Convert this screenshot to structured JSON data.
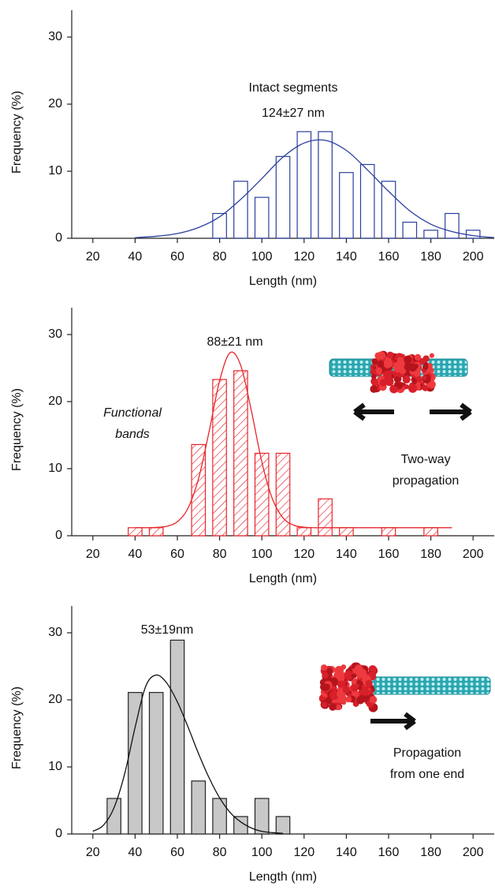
{
  "chart_data": [
    {
      "type": "bar",
      "x": [
        80,
        90,
        100,
        110,
        120,
        130,
        140,
        150,
        160,
        170,
        180,
        190,
        200
      ],
      "values": [
        3.7,
        8.5,
        6.1,
        12.2,
        15.9,
        15.9,
        9.8,
        11.0,
        8.5,
        2.4,
        1.2,
        3.7,
        1.2
      ],
      "color": "#2b3f9e",
      "fill": "none",
      "fit": {
        "color": "#2b3f9e",
        "x": [
          40,
          50,
          60,
          70,
          80,
          90,
          100,
          110,
          120,
          130,
          140,
          150,
          160,
          170,
          180,
          190,
          200,
          210
        ],
        "values": [
          0.1,
          0.3,
          0.7,
          1.6,
          3.2,
          5.8,
          8.9,
          12.1,
          14.2,
          14.6,
          13.1,
          10.2,
          7.0,
          4.1,
          2.1,
          1.0,
          0.4,
          0.1
        ]
      },
      "xlim": [
        10,
        210
      ],
      "ylim": [
        0,
        34
      ],
      "xticks": [
        20,
        40,
        60,
        80,
        100,
        120,
        140,
        160,
        180,
        200
      ],
      "yticks": [
        0,
        10,
        20,
        30
      ],
      "xlabel": "Length (nm)",
      "ylabel": "Frequency (%)",
      "annotations": [
        {
          "lines": [
            "Intact segments"
          ]
        },
        {
          "lines": [
            "124±27 nm"
          ]
        }
      ]
    },
    {
      "type": "bar",
      "x": [
        40,
        50,
        70,
        80,
        90,
        100,
        110,
        120,
        130,
        140,
        160,
        180
      ],
      "values": [
        1.2,
        1.2,
        13.6,
        23.3,
        24.6,
        12.3,
        12.3,
        1.2,
        5.5,
        1.2,
        1.2,
        1.2
      ],
      "color": "#e8262b",
      "fill": "hatch",
      "fit": {
        "color": "#e8262b",
        "x": [
          40,
          45,
          50,
          55,
          60,
          65,
          70,
          75,
          80,
          85,
          90,
          95,
          100,
          105,
          110,
          115,
          120,
          125,
          130,
          140,
          150,
          160,
          170,
          180,
          190
        ],
        "values": [
          1.2,
          1.2,
          1.24,
          1.41,
          2.09,
          4.09,
          8.48,
          15.5,
          23.1,
          27.3,
          25.4,
          18.7,
          11.0,
          5.5,
          2.67,
          1.59,
          1.28,
          1.2,
          1.2,
          1.2,
          1.2,
          1.2,
          1.2,
          1.2,
          1.2
        ]
      },
      "xlim": [
        10,
        210
      ],
      "ylim": [
        0,
        34
      ],
      "xticks": [
        20,
        40,
        60,
        80,
        100,
        120,
        140,
        160,
        180,
        200
      ],
      "yticks": [
        0,
        10,
        20,
        30
      ],
      "xlabel": "Length (nm)",
      "ylabel": "Frequency (%)",
      "annotations": [
        {
          "lines": [
            "88±21 nm"
          ]
        },
        {
          "lines": [
            "Functional",
            "bands"
          ]
        },
        {
          "lines": [
            "Two-way",
            "propagation"
          ]
        }
      ]
    },
    {
      "type": "bar",
      "x": [
        30,
        40,
        50,
        60,
        70,
        80,
        90,
        100,
        110
      ],
      "values": [
        5.3,
        21.1,
        21.1,
        28.9,
        7.9,
        5.3,
        2.6,
        5.3,
        2.6
      ],
      "color": "#222222",
      "fill": "#c8c8c8",
      "fit": {
        "color": "#111111",
        "x": [
          20,
          25,
          30,
          35,
          40,
          45,
          50,
          55,
          60,
          65,
          70,
          75,
          80,
          85,
          90,
          95,
          100,
          105,
          110
        ],
        "values": [
          0.4,
          1.3,
          3.9,
          8.9,
          15.9,
          22.0,
          23.7,
          22.5,
          19.7,
          16.0,
          12.0,
          8.4,
          5.4,
          3.2,
          1.8,
          0.9,
          0.4,
          0.2,
          0.1
        ]
      },
      "xlim": [
        10,
        210
      ],
      "ylim": [
        0,
        34
      ],
      "xticks": [
        20,
        40,
        60,
        80,
        100,
        120,
        140,
        160,
        180,
        200
      ],
      "yticks": [
        0,
        10,
        20,
        30
      ],
      "xlabel": "Length (nm)",
      "ylabel": "Frequency (%)",
      "annotations": [
        {
          "lines": [
            "53±19nm"
          ]
        },
        {
          "lines": [
            "Propagation",
            "from one end"
          ]
        }
      ]
    }
  ]
}
